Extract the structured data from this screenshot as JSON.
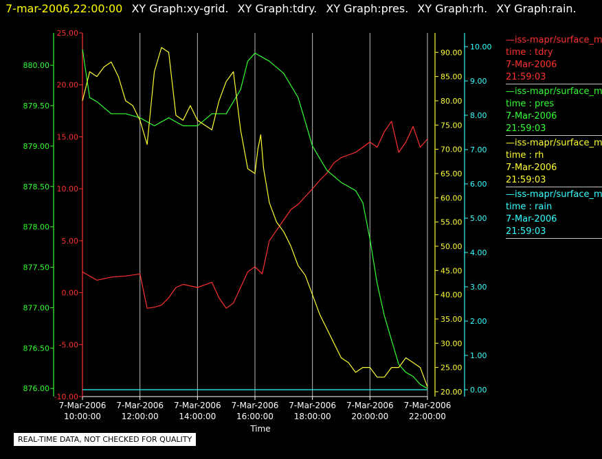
{
  "title": {
    "timestamp": "7-mar-2006,22:00:00",
    "graphs": [
      "XY Graph:xy-grid.",
      "XY Graph:tdry.",
      "XY Graph:pres.",
      "XY Graph:rh.",
      "XY Graph:rain."
    ]
  },
  "legend": [
    {
      "head": "—iss-mapr/surface_m",
      "line2": "time : tdry",
      "line3": "7-Mar-2006",
      "line4": "21:59:03",
      "color": "#ff3030"
    },
    {
      "head": "—iss-mapr/surface_m",
      "line2": "time : pres",
      "line3": "7-Mar-2006",
      "line4": "21:59:03",
      "color": "#33ff33"
    },
    {
      "head": "—iss-mapr/surface_m",
      "line2": "time : rh",
      "line3": "7-Mar-2006",
      "line4": "21:59:03",
      "color": "#ffff33"
    },
    {
      "head": "—iss-mapr/surface_m",
      "line2": "time : rain",
      "line3": "7-Mar-2006",
      "line4": "21:59:03",
      "color": "#33ffff"
    }
  ],
  "footer_note": "REAL-TIME DATA, NOT CHECKED FOR QUALITY",
  "chart_data": {
    "type": "line",
    "xlabel": "Time",
    "x_ticks": [
      {
        "date": "7-Mar-2006",
        "time": "10:00:00"
      },
      {
        "date": "7-Mar-2006",
        "time": "12:00:00"
      },
      {
        "date": "7-Mar-2006",
        "time": "14:00:00"
      },
      {
        "date": "7-Mar-2006",
        "time": "16:00:00"
      },
      {
        "date": "7-Mar-2006",
        "time": "18:00:00"
      },
      {
        "date": "7-Mar-2006",
        "time": "20:00:00"
      },
      {
        "date": "7-Mar-2006",
        "time": "22:00:00"
      }
    ],
    "xlim_hours": [
      10,
      22
    ],
    "grid": "vertical",
    "axes": {
      "pres": {
        "color": "#33ff33",
        "ylim": [
          875.9,
          880.4
        ],
        "ticks": [
          "876.00",
          "876.50",
          "877.00",
          "877.50",
          "878.00",
          "878.50",
          "879.00",
          "879.50",
          "880.00"
        ]
      },
      "tdry": {
        "color": "#ff3030",
        "ylim": [
          -10,
          25
        ],
        "ticks": [
          "-10.00",
          "-5.00",
          "0.00",
          "5.00",
          "10.00",
          "15.00",
          "20.00",
          "25.00"
        ]
      },
      "rh": {
        "color": "#ffff33",
        "ylim": [
          19,
          94
        ],
        "ticks": [
          "20.00",
          "25.00",
          "30.00",
          "35.00",
          "40.00",
          "45.00",
          "50.00",
          "55.00",
          "60.00",
          "65.00",
          "70.00",
          "75.00",
          "80.00",
          "85.00",
          "90.00"
        ]
      },
      "rain": {
        "color": "#33ffff",
        "ylim": [
          -0.2,
          10.4
        ],
        "ticks": [
          "0.00",
          "1.00",
          "2.00",
          "3.00",
          "4.00",
          "5.00",
          "6.00",
          "7.00",
          "8.00",
          "9.00",
          "10.00"
        ]
      }
    },
    "series": [
      {
        "name": "tdry",
        "axis": "tdry",
        "color": "#ff3030",
        "x": [
          10,
          10.5,
          11,
          11.5,
          12,
          12.25,
          12.5,
          12.75,
          13,
          13.25,
          13.5,
          14,
          14.5,
          14.75,
          15,
          15.25,
          15.5,
          15.75,
          16,
          16.25,
          16.5,
          16.75,
          17,
          17.25,
          17.5,
          18,
          18.25,
          18.5,
          18.75,
          19,
          19.5,
          20,
          20.25,
          20.5,
          20.75,
          21,
          21.25,
          21.5,
          21.75,
          22
        ],
        "y": [
          2,
          1.2,
          1.5,
          1.6,
          1.8,
          -1.5,
          -1.4,
          -1.2,
          -0.5,
          0.5,
          0.8,
          0.5,
          1.0,
          -0.5,
          -1.5,
          -1.0,
          0.5,
          2.0,
          2.5,
          1.8,
          5.0,
          6.0,
          7.0,
          8.0,
          8.5,
          10.0,
          10.8,
          11.5,
          12.5,
          13.0,
          13.5,
          14.5,
          14.0,
          15.5,
          16.5,
          13.5,
          14.5,
          16.0,
          14.0,
          14.8
        ]
      },
      {
        "name": "pres",
        "axis": "pres",
        "color": "#33ff33",
        "x": [
          10,
          10.25,
          10.5,
          11,
          11.5,
          12,
          12.5,
          13,
          13.5,
          14,
          14.5,
          15,
          15.5,
          15.75,
          16,
          16.25,
          16.5,
          17,
          17.5,
          18,
          18.5,
          19,
          19.5,
          19.75,
          20,
          20.25,
          20.5,
          20.75,
          21,
          21.25,
          21.5,
          21.75,
          22
        ],
        "y": [
          880.2,
          879.6,
          879.55,
          879.4,
          879.4,
          879.35,
          879.25,
          879.35,
          879.25,
          879.25,
          879.4,
          879.4,
          879.7,
          880.05,
          880.15,
          880.1,
          880.05,
          879.9,
          879.6,
          879.0,
          878.7,
          878.55,
          878.45,
          878.3,
          877.85,
          877.3,
          876.9,
          876.6,
          876.3,
          876.2,
          876.15,
          876.05,
          876.0
        ]
      },
      {
        "name": "rh",
        "axis": "rh",
        "color": "#ffff33",
        "x": [
          10,
          10.25,
          10.5,
          10.75,
          11,
          11.25,
          11.5,
          11.75,
          12,
          12.25,
          12.5,
          12.75,
          13,
          13.25,
          13.5,
          13.75,
          14,
          14.5,
          14.75,
          15,
          15.25,
          15.5,
          15.75,
          16,
          16.1,
          16.2,
          16.3,
          16.5,
          16.75,
          17,
          17.25,
          17.5,
          17.75,
          18,
          18.25,
          18.5,
          18.75,
          19,
          19.25,
          19.5,
          19.75,
          20,
          20.25,
          20.5,
          20.75,
          21,
          21.25,
          21.5,
          21.75,
          22
        ],
        "y": [
          80,
          86,
          85,
          87,
          88,
          85,
          80,
          79,
          76,
          71,
          86,
          91,
          90,
          77,
          76,
          79,
          76,
          74,
          80,
          84,
          86,
          74,
          66,
          65,
          70,
          73,
          66,
          59,
          55,
          53,
          50,
          46,
          44,
          40,
          36,
          33,
          30,
          27,
          26,
          24,
          25,
          25,
          23,
          23,
          25,
          25,
          27,
          26,
          25,
          21
        ]
      },
      {
        "name": "rain",
        "axis": "rain",
        "color": "#33ffff",
        "x": [
          10,
          22
        ],
        "y": [
          0,
          0
        ]
      }
    ]
  }
}
